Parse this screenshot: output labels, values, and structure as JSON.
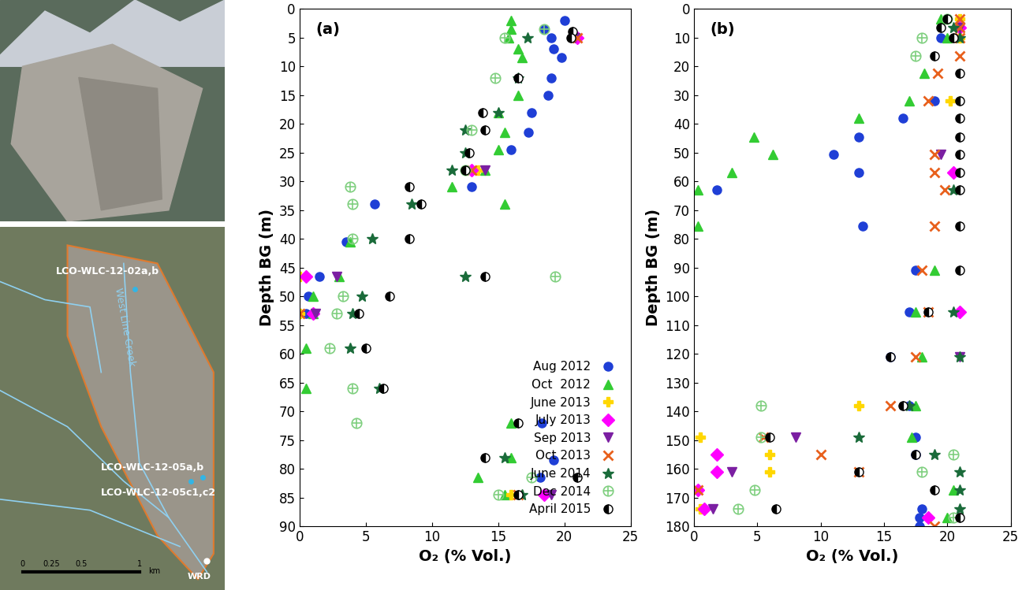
{
  "chart_data": [
    {
      "type": "scatter",
      "title": "(a)",
      "xlabel": "O₂ (% Vol.)",
      "ylabel": "Depth BG (m)",
      "xlim": [
        0,
        25
      ],
      "xticks": [
        0,
        5,
        10,
        15,
        20,
        25
      ],
      "ylim": [
        0,
        90
      ],
      "yticks": [
        0,
        5,
        10,
        15,
        20,
        25,
        30,
        35,
        40,
        45,
        50,
        55,
        60,
        65,
        70,
        75,
        80,
        85,
        90
      ],
      "legend": "lower right",
      "series": [
        {
          "name": "Aug 2012",
          "color": "#1f3fd6",
          "marker": "circle",
          "x": [
            20,
            18.5,
            19,
            19.2,
            19.8,
            19,
            18.8,
            17.5,
            17.3,
            16,
            13,
            5.7,
            3.5,
            1.5,
            0.7,
            0.5,
            18.3,
            19.2,
            18.2
          ],
          "y": [
            2,
            3.5,
            5,
            7,
            8.5,
            12,
            15,
            18,
            21.5,
            24.5,
            31,
            34,
            40.5,
            46.5,
            50,
            53,
            72,
            78.5,
            81.5
          ]
        },
        {
          "name": "Oct  2012",
          "color": "#33cc33",
          "marker": "triangle_up",
          "x": [
            16,
            16,
            15.8,
            16.5,
            16.8,
            16.5,
            15,
            15.5,
            15,
            14,
            11.5,
            15.5,
            3.8,
            3,
            1,
            1,
            0.5,
            0.5,
            16,
            16,
            13.5,
            15.5
          ],
          "y": [
            2,
            3.5,
            5,
            7,
            8.5,
            15,
            18,
            21.5,
            24.5,
            28,
            31,
            34,
            40.5,
            46.5,
            50,
            53,
            59,
            66,
            72,
            78,
            81.5,
            84.5
          ]
        },
        {
          "name": "June 2013",
          "color": "#ffd700",
          "marker": "plus",
          "x": [
            0,
            0,
            13.5,
            16
          ],
          "y": [
            46.5,
            53,
            28,
            84.5
          ]
        },
        {
          "name": "July 2013",
          "color": "#ff00ff",
          "marker": "diamond",
          "x": [
            21,
            13,
            0.5,
            1,
            18.5
          ],
          "y": [
            5,
            28,
            46.5,
            53,
            84.5
          ]
        },
        {
          "name": "Sep 2013",
          "color": "#7b1fa2",
          "marker": "triangle_down",
          "x": [
            20.8,
            14,
            2.8,
            1.2,
            19
          ],
          "y": [
            5,
            28,
            46.5,
            53,
            84.5
          ]
        },
        {
          "name": "Oct 2013",
          "color": "#e8601c",
          "marker": "x",
          "x": [
            21,
            13,
            0,
            16.5
          ],
          "y": [
            5,
            28,
            53,
            84.5
          ]
        },
        {
          "name": "June 2014",
          "color": "#1a6b3a",
          "marker": "star",
          "x": [
            17.2,
            16.5,
            15,
            12.5,
            12.5,
            11.5,
            8.5,
            5.5,
            12.5,
            4.7,
            4,
            3.8,
            6,
            15.5,
            16.8
          ],
          "y": [
            5,
            12,
            18,
            21,
            25,
            28,
            34,
            40,
            46.5,
            50,
            53,
            59,
            66,
            78,
            84.5
          ]
        },
        {
          "name": "Dec 2014",
          "color": "#7fcf7f",
          "marker": "circled_plus",
          "x": [
            18.5,
            15.5,
            14.8,
            13,
            12.5,
            3.8,
            4,
            4,
            19.3,
            3.3,
            2.8,
            2.3,
            4,
            4.3,
            17.5,
            15
          ],
          "y": [
            3.5,
            5,
            12,
            21,
            28,
            31,
            34,
            40,
            46.5,
            50,
            53,
            59,
            66,
            72,
            81.5,
            84.5
          ]
        },
        {
          "name": "April 2015",
          "color": "#000000",
          "marker": "half_circle",
          "x": [
            20.6,
            20.5,
            16.5,
            13.8,
            14,
            12.8,
            12.5,
            8.3,
            9.2,
            8.3,
            14,
            6.8,
            4.5,
            5,
            6.3,
            16.5,
            14,
            21,
            16.5
          ],
          "y": [
            4,
            5,
            12,
            18,
            21,
            25,
            28,
            31,
            34,
            40,
            46.5,
            50,
            53,
            59,
            66,
            72,
            78,
            81.5,
            84.5
          ]
        }
      ]
    },
    {
      "type": "scatter",
      "title": "(b)",
      "xlabel": "O₂ (% Vol.)",
      "ylabel": "Depth BG (m)",
      "xlim": [
        0,
        25
      ],
      "xticks": [
        0,
        5,
        10,
        15,
        20,
        25
      ],
      "ylim": [
        0,
        180
      ],
      "yticks": [
        0,
        10,
        20,
        30,
        40,
        50,
        60,
        70,
        80,
        90,
        100,
        110,
        120,
        130,
        140,
        150,
        160,
        170,
        180
      ],
      "series": [
        {
          "name": "Aug 2012",
          "color": "#1f3fd6",
          "marker": "circle",
          "x": [
            20,
            19.5,
            19,
            16.5,
            13,
            11,
            13,
            1.8,
            13.3,
            17.5,
            17,
            15.5,
            17,
            17.5,
            17.5,
            18,
            17.8,
            17.8
          ],
          "y": [
            3.5,
            10,
            32,
            38,
            44.5,
            50.5,
            57,
            63,
            75.5,
            91,
            105.5,
            121,
            138,
            149,
            155,
            174,
            177,
            180
          ]
        },
        {
          "name": "Oct  2012",
          "color": "#33cc33",
          "marker": "triangle_up",
          "x": [
            19.5,
            20,
            18.2,
            17,
            13,
            4.7,
            6.2,
            3,
            0.3,
            0.3,
            19,
            17.5,
            18,
            17.5,
            17.2,
            20.5,
            20
          ],
          "y": [
            3.5,
            10,
            22.5,
            32,
            38,
            44.5,
            50.5,
            57,
            63,
            75.5,
            91,
            105.5,
            121,
            138,
            149,
            167.5,
            177
          ]
        },
        {
          "name": "June 2013",
          "color": "#ffd700",
          "marker": "plus",
          "x": [
            21,
            21,
            21,
            20.2,
            13,
            0.5,
            6,
            6,
            0.5
          ],
          "y": [
            3.5,
            6.5,
            10,
            32,
            138,
            149,
            155,
            161,
            174
          ]
        },
        {
          "name": "July 2013",
          "color": "#ff00ff",
          "marker": "diamond",
          "x": [
            21,
            20.5,
            21,
            1.8,
            1.8,
            0.3,
            0.8,
            18.5
          ],
          "y": [
            6.5,
            57,
            105.5,
            155,
            161,
            167.5,
            174,
            177
          ]
        },
        {
          "name": "Sep 2013",
          "color": "#7b1fa2",
          "marker": "triangle_down",
          "x": [
            21,
            19.5,
            21,
            8,
            3,
            1.5
          ],
          "y": [
            6.5,
            50.5,
            121,
            149,
            161,
            174
          ]
        },
        {
          "name": "Oct 2013",
          "color": "#e8601c",
          "marker": "x",
          "x": [
            21,
            21,
            21,
            21,
            19.2,
            18.5,
            19,
            19,
            19.8,
            19,
            18,
            18.5,
            17.5,
            15.5,
            5.5,
            10,
            13,
            0.3,
            19
          ],
          "y": [
            3.5,
            6.5,
            10,
            16.5,
            22.5,
            32,
            50.5,
            57,
            63,
            75.5,
            91,
            105.5,
            121,
            138,
            149,
            155,
            161,
            167.5,
            180
          ]
        },
        {
          "name": "June 2014",
          "color": "#1a6b3a",
          "marker": "star",
          "x": [
            20.5,
            21,
            20.5,
            20.5,
            21,
            17,
            13,
            19,
            21,
            21,
            21
          ],
          "y": [
            6.5,
            10,
            63,
            105.5,
            121,
            138,
            149,
            155,
            161,
            167.5,
            174
          ]
        },
        {
          "name": "Dec 2014",
          "color": "#7fcf7f",
          "marker": "circled_plus",
          "x": [
            20,
            18,
            17.5,
            5.3,
            5.3,
            20.5,
            18,
            4.8,
            3.5,
            20.5
          ],
          "y": [
            3.5,
            10,
            16.5,
            138,
            149,
            155,
            161,
            167.5,
            174,
            177
          ]
        },
        {
          "name": "April 2015",
          "color": "#000000",
          "marker": "half_circle",
          "x": [
            20,
            19.5,
            20.5,
            19,
            21,
            21,
            21,
            21,
            21,
            21,
            21,
            21,
            21,
            18.5,
            15.5,
            16.5,
            6,
            17.5,
            13,
            19,
            6.5,
            21
          ],
          "y": [
            3.5,
            6.5,
            10,
            16.5,
            22.5,
            32,
            38,
            44.5,
            50.5,
            57,
            63,
            75.5,
            91,
            105.5,
            121,
            138,
            149,
            155,
            161,
            167.5,
            174,
            177
          ]
        }
      ]
    }
  ],
  "map": {
    "labels": [
      "LCO-WLC-12-02a,b",
      "West Line Creek",
      "LCO-WLC-12-05a,b",
      "LCO-WLC-12-05c1,c2",
      "WRD"
    ],
    "scale_labels": [
      "0",
      "0.25",
      "0.5",
      "1"
    ],
    "scale_unit": "km"
  }
}
